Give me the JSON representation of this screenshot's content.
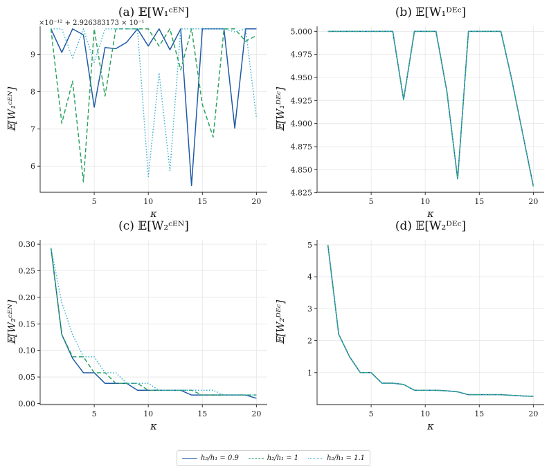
{
  "chart_data": [
    {
      "type": "line",
      "title": "(a) 𝔼[W₁ᶜᴱᴺ]",
      "xlabel": "κ",
      "ylabel": "𝔼[W₁ᶜᴱᴺ]",
      "offset_text": "×10⁻¹² + 2.926383173 × 10⁻¹",
      "x": [
        1,
        2,
        3,
        4,
        5,
        6,
        7,
        8,
        9,
        10,
        11,
        12,
        13,
        14,
        15,
        16,
        17,
        18,
        19,
        20
      ],
      "xlim": [
        0.0,
        21.0
      ],
      "ylim": [
        5.3,
        9.75
      ],
      "xticks": [
        5,
        10,
        15,
        20
      ],
      "yticks": [
        6,
        7,
        8,
        9
      ],
      "ytick_labels": [
        "6",
        "7",
        "8",
        "9"
      ],
      "series": [
        {
          "name": "h₂/h₁ = 0.9",
          "style": "solid",
          "values": [
            9.68,
            9.05,
            9.68,
            9.52,
            7.58,
            9.18,
            9.15,
            9.32,
            9.68,
            9.22,
            9.68,
            9.12,
            9.68,
            5.48,
            9.68,
            9.68,
            9.68,
            7.02,
            9.68,
            9.68
          ]
        },
        {
          "name": "h₂/h₁ = 1",
          "style": "dashed",
          "values": [
            9.68,
            7.15,
            8.28,
            5.58,
            9.68,
            7.88,
            9.68,
            9.68,
            9.68,
            9.68,
            9.22,
            9.68,
            8.58,
            9.68,
            7.65,
            6.78,
            9.68,
            9.68,
            9.35,
            9.5
          ]
        },
        {
          "name": "h₂/h₁ = 1.1",
          "style": "dotted",
          "values": [
            9.68,
            9.68,
            8.9,
            9.68,
            8.78,
            9.68,
            9.68,
            9.68,
            9.68,
            5.72,
            8.5,
            5.88,
            9.68,
            9.68,
            9.68,
            9.68,
            9.68,
            9.6,
            9.68,
            7.3
          ]
        }
      ]
    },
    {
      "type": "line",
      "title": "(b) 𝔼[W₁ᴰᴱᶜ]",
      "xlabel": "κ",
      "ylabel": "𝔼[W₁ᴰᴱᶜ]",
      "x": [
        1,
        2,
        3,
        4,
        5,
        6,
        7,
        8,
        9,
        10,
        11,
        12,
        13,
        14,
        15,
        16,
        17,
        18,
        19,
        20
      ],
      "xlim": [
        0.0,
        21.0
      ],
      "ylim": [
        4.8255,
        5.0055
      ],
      "xticks": [
        5,
        10,
        15,
        20
      ],
      "yticks": [
        4.825,
        4.85,
        4.875,
        4.9,
        4.925,
        4.95,
        4.975,
        5.0
      ],
      "ytick_labels": [
        "4.825",
        "4.850",
        "4.875",
        "4.900",
        "4.925",
        "4.950",
        "4.975",
        "5.000"
      ],
      "series": [
        {
          "name": "h₂/h₁ = 0.9",
          "style": "solid",
          "values": [
            5.0,
            5.0,
            5.0,
            5.0,
            5.0,
            5.0,
            5.0,
            4.926,
            5.0,
            5.0,
            5.0,
            4.935,
            4.84,
            5.0,
            5.0,
            5.0,
            5.0,
            4.948,
            4.89,
            4.832
          ]
        },
        {
          "name": "h₂/h₁ = 1",
          "style": "dashed",
          "values": [
            5.0,
            5.0,
            5.0,
            5.0,
            5.0,
            5.0,
            5.0,
            4.926,
            5.0,
            5.0,
            5.0,
            4.935,
            4.84,
            5.0,
            5.0,
            5.0,
            5.0,
            4.948,
            4.89,
            4.832
          ]
        },
        {
          "name": "h₂/h₁ = 1.1",
          "style": "dotted",
          "values": [
            5.0,
            5.0,
            5.0,
            5.0,
            5.0,
            5.0,
            5.0,
            4.926,
            5.0,
            5.0,
            5.0,
            4.935,
            4.84,
            5.0,
            5.0,
            5.0,
            5.0,
            4.948,
            4.89,
            4.832
          ]
        }
      ]
    },
    {
      "type": "line",
      "title": "(c) 𝔼[W₂ᶜᴱᴺ]",
      "xlabel": "κ",
      "ylabel": "𝔼[W₂ᶜᴱᴺ]",
      "x": [
        1,
        2,
        3,
        4,
        5,
        6,
        7,
        8,
        9,
        10,
        11,
        12,
        13,
        14,
        15,
        16,
        17,
        18,
        19,
        20
      ],
      "xlim": [
        0.0,
        21.0
      ],
      "ylim": [
        -0.002,
        0.308
      ],
      "xticks": [
        5,
        10,
        15,
        20
      ],
      "yticks": [
        0.0,
        0.05,
        0.1,
        0.15,
        0.2,
        0.25,
        0.3
      ],
      "ytick_labels": [
        "0.00",
        "0.05",
        "0.10",
        "0.15",
        "0.20",
        "0.25",
        "0.30"
      ],
      "series": [
        {
          "name": "h₂/h₁ = 0.9",
          "style": "solid",
          "values": [
            0.293,
            0.13,
            0.085,
            0.058,
            0.058,
            0.038,
            0.038,
            0.038,
            0.025,
            0.025,
            0.025,
            0.025,
            0.025,
            0.016,
            0.016,
            0.016,
            0.016,
            0.016,
            0.016,
            0.01
          ]
        },
        {
          "name": "h₂/h₁ = 1",
          "style": "dashed",
          "values": [
            0.293,
            0.13,
            0.088,
            0.088,
            0.058,
            0.058,
            0.038,
            0.038,
            0.038,
            0.025,
            0.025,
            0.025,
            0.025,
            0.025,
            0.016,
            0.016,
            0.016,
            0.016,
            0.016,
            0.016
          ]
        },
        {
          "name": "h₂/h₁ = 1.1",
          "style": "dotted",
          "values": [
            0.293,
            0.19,
            0.13,
            0.088,
            0.088,
            0.058,
            0.058,
            0.038,
            0.038,
            0.038,
            0.025,
            0.025,
            0.025,
            0.025,
            0.025,
            0.025,
            0.016,
            0.016,
            0.016,
            0.016
          ]
        }
      ]
    },
    {
      "type": "line",
      "title": "(d) 𝔼[W₂ᴰᴱᶜ]",
      "xlabel": "κ",
      "ylabel": "𝔼[W₂ᴰᴱᶜ]",
      "x": [
        1,
        2,
        3,
        4,
        5,
        6,
        7,
        8,
        9,
        10,
        11,
        12,
        13,
        14,
        15,
        16,
        17,
        18,
        19,
        20
      ],
      "xlim": [
        0.0,
        21.0
      ],
      "ylim": [
        0.0,
        5.15
      ],
      "xticks": [
        5,
        10,
        15,
        20
      ],
      "yticks": [
        1,
        2,
        3,
        4,
        5
      ],
      "ytick_labels": [
        "1",
        "2",
        "3",
        "4",
        "5"
      ],
      "series": [
        {
          "name": "h₂/h₁ = 0.9",
          "style": "solid",
          "values": [
            5.0,
            2.2,
            1.5,
            1.0,
            1.0,
            0.67,
            0.67,
            0.63,
            0.45,
            0.45,
            0.45,
            0.43,
            0.4,
            0.31,
            0.31,
            0.31,
            0.31,
            0.29,
            0.27,
            0.26
          ]
        },
        {
          "name": "h₂/h₁ = 1",
          "style": "dashed",
          "values": [
            5.0,
            2.2,
            1.5,
            1.0,
            1.0,
            0.67,
            0.67,
            0.63,
            0.45,
            0.45,
            0.45,
            0.43,
            0.4,
            0.31,
            0.31,
            0.31,
            0.31,
            0.29,
            0.27,
            0.26
          ]
        },
        {
          "name": "h₂/h₁ = 1.1",
          "style": "dotted",
          "values": [
            5.0,
            2.2,
            1.5,
            1.0,
            1.0,
            0.67,
            0.67,
            0.63,
            0.45,
            0.45,
            0.45,
            0.43,
            0.4,
            0.31,
            0.31,
            0.31,
            0.31,
            0.29,
            0.27,
            0.26
          ]
        }
      ]
    }
  ],
  "legend": {
    "entries": [
      {
        "label": "h₂/h₁ = 0.9",
        "color": "#1f5aa6",
        "style": "solid"
      },
      {
        "label": "h₂/h₁ = 1",
        "color": "#2ca25f",
        "style": "dashed"
      },
      {
        "label": "h₂/h₁ = 1.1",
        "color": "#3bb0d0",
        "style": "dotted"
      }
    ]
  },
  "colors": {
    "solid": "#1f5aa6",
    "dashed": "#2ca25f",
    "dotted": "#3bb0d0"
  }
}
